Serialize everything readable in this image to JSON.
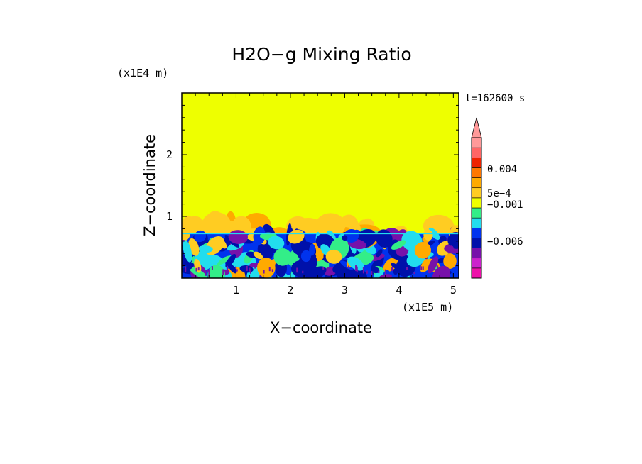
{
  "chart_data": {
    "type": "heatmap",
    "title": "H2O−g Mixing Ratio",
    "time_label": "t=162600 s",
    "xlabel": "X−coordinate",
    "ylabel": "Z−coordinate",
    "x_unit": "(x1E5 m)",
    "y_unit": "(x1E4 m)",
    "xlim": [
      0.0,
      5.1
    ],
    "ylim": [
      0.0,
      3.0
    ],
    "x_ticks": [
      1,
      2,
      3,
      4,
      5
    ],
    "y_ticks": [
      1,
      2
    ],
    "x_tick_labels": [
      "1",
      "2",
      "3",
      "4",
      "5"
    ],
    "y_tick_labels": [
      "1",
      "2"
    ],
    "background_color": "#eeff00",
    "boundary_layer_top": 0.72,
    "cloud_layer_top": 1.02,
    "colorbar": {
      "colors": [
        "#ee11aa",
        "#cc22cc",
        "#7711aa",
        "#0011aa",
        "#0033ee",
        "#22ddee",
        "#33ee88",
        "#eeff00",
        "#ffcc22",
        "#ffaa00",
        "#ff7700",
        "#ee2200",
        "#ff6666",
        "#ff9999"
      ],
      "extend_color": "#ff9999",
      "labels": [
        {
          "text": "0.004",
          "level": 0.004
        },
        {
          "text": "5e−4",
          "level": 0.0005
        },
        {
          "text": "−0.001",
          "level": -0.001
        },
        {
          "text": "−0.006",
          "level": -0.006
        }
      ]
    }
  }
}
